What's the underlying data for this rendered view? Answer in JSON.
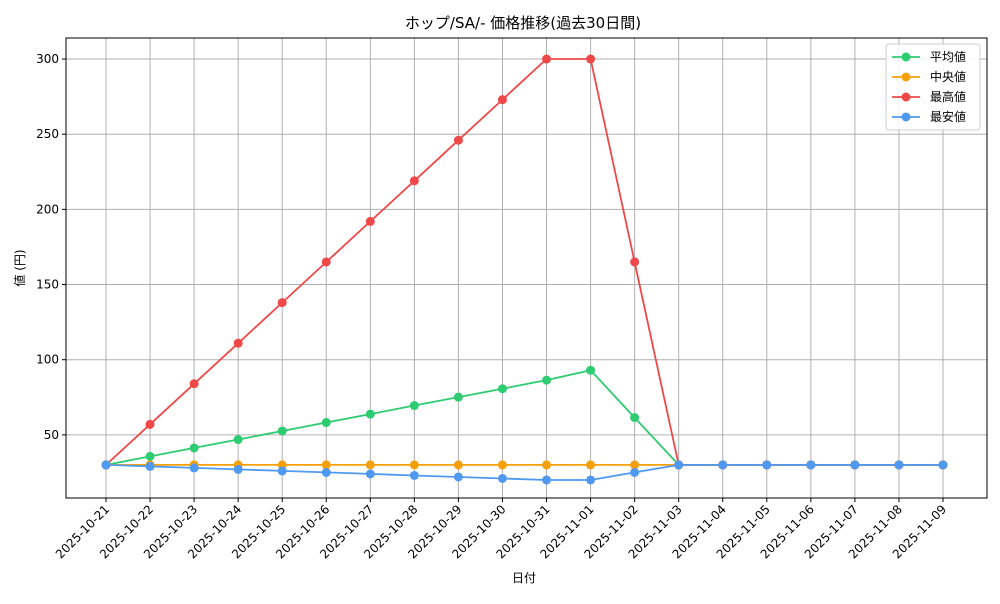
{
  "chart_data": {
    "type": "line",
    "title": "ホップ/SA/- 価格推移(過去30日間)",
    "xlabel": "日付",
    "ylabel": "値 (円)",
    "x": [
      "2025-10-21",
      "2025-10-22",
      "2025-10-23",
      "2025-10-24",
      "2025-10-25",
      "2025-10-26",
      "2025-10-27",
      "2025-10-28",
      "2025-10-29",
      "2025-10-30",
      "2025-10-31",
      "2025-11-01",
      "2025-11-02",
      "2025-11-03",
      "2025-11-04",
      "2025-11-05",
      "2025-11-06",
      "2025-11-07",
      "2025-11-08",
      "2025-11-09"
    ],
    "yticks": [
      50,
      100,
      150,
      200,
      250,
      300
    ],
    "ylim": [
      8,
      314
    ],
    "grid": true,
    "legend_position": "top-right",
    "series": [
      {
        "name": "平均値",
        "color": "#2ecc71",
        "values": [
          30,
          35.7,
          41.3,
          46.9,
          52.6,
          58.2,
          63.8,
          69.5,
          75.1,
          80.7,
          86.4,
          93,
          61.5,
          30,
          30,
          30,
          30,
          30,
          30,
          30
        ]
      },
      {
        "name": "中央値",
        "color": "#f5a00a",
        "values": [
          30,
          30,
          30,
          30,
          30,
          30,
          30,
          30,
          30,
          30,
          30,
          30,
          30,
          30,
          30,
          30,
          30,
          30,
          30,
          30
        ]
      },
      {
        "name": "最高値",
        "color": "#ef4848",
        "values": [
          30,
          57,
          84,
          111,
          138,
          165,
          192,
          219,
          246,
          273,
          300,
          300,
          165,
          30,
          30,
          30,
          30,
          30,
          30,
          30
        ]
      },
      {
        "name": "最安値",
        "color": "#4f9af0",
        "values": [
          30,
          29,
          28,
          27,
          26,
          25,
          24,
          23,
          22,
          21,
          20,
          20,
          25,
          30,
          30,
          30,
          30,
          30,
          30,
          30
        ]
      }
    ]
  }
}
